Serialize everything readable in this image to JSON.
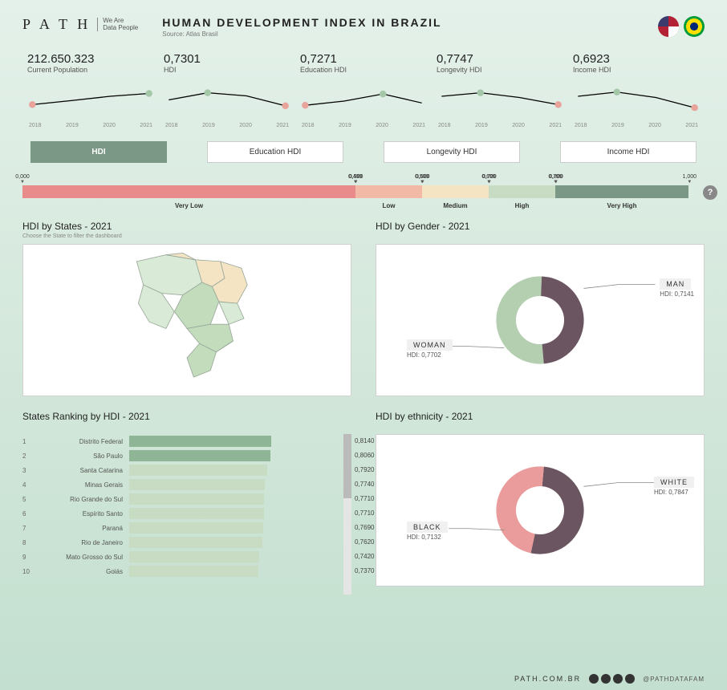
{
  "header": {
    "logo_text": "P A T H",
    "logo_sub1": "We Are",
    "logo_sub2": "Data People",
    "title": "HUMAN DEVELOPMENT INDEX IN BRAZIL",
    "source": "Source: Atlas Brasil"
  },
  "kpis": [
    {
      "value": "212.650.323",
      "label": "Current Population",
      "spark": {
        "years": [
          "2018",
          "2019",
          "2020",
          "2021"
        ],
        "y": [
          0.25,
          0.42,
          0.6,
          0.72
        ],
        "hl_first": true,
        "hl_last": true,
        "first_color": "#e8a39b",
        "last_color": "#a4c7a8",
        "line": "#000"
      }
    },
    {
      "value": "0,7301",
      "label": "HDI",
      "spark": {
        "years": [
          "2018",
          "2019",
          "2020",
          "2021"
        ],
        "y": [
          0.45,
          0.75,
          0.62,
          0.2
        ],
        "hl_first": false,
        "hl_last": true,
        "mid_hl_idx": 1,
        "mid_color": "#a4c7a8",
        "last_color": "#e8a39b",
        "line": "#000"
      }
    },
    {
      "value": "0,7271",
      "label": "Education HDI",
      "spark": {
        "years": [
          "2018",
          "2019",
          "2020",
          "2021"
        ],
        "y": [
          0.22,
          0.4,
          0.7,
          0.32
        ],
        "hl_first": true,
        "hl_last": false,
        "mid_hl_idx": 2,
        "first_color": "#e8a39b",
        "mid_color": "#a4c7a8",
        "line": "#000"
      }
    },
    {
      "value": "0,7747",
      "label": "Longevity HDI",
      "spark": {
        "years": [
          "2018",
          "2019",
          "2020",
          "2021"
        ],
        "y": [
          0.6,
          0.75,
          0.55,
          0.25
        ],
        "hl_first": false,
        "hl_last": true,
        "mid_hl_idx": 1,
        "mid_color": "#a4c7a8",
        "last_color": "#e8a39b",
        "line": "#000"
      }
    },
    {
      "value": "0,6923",
      "label": "Income HDI",
      "spark": {
        "years": [
          "2018",
          "2019",
          "2020",
          "2021"
        ],
        "y": [
          0.6,
          0.78,
          0.55,
          0.12
        ],
        "hl_first": false,
        "hl_last": true,
        "mid_hl_idx": 1,
        "mid_color": "#a4c7a8",
        "last_color": "#e8a39b",
        "line": "#000"
      }
    }
  ],
  "tabs": [
    {
      "label": "HDI",
      "active": true
    },
    {
      "label": "Education HDI",
      "active": false
    },
    {
      "label": "Longevity HDI",
      "active": false
    },
    {
      "label": "Income HDI",
      "active": false
    }
  ],
  "scale": {
    "ticks": [
      {
        "pos": 0.0,
        "label": "0,000"
      },
      {
        "pos": 0.499,
        "label": "0,499"
      },
      {
        "pos": 0.5,
        "label": "0,500"
      },
      {
        "pos": 0.599,
        "label": "0,599"
      },
      {
        "pos": 0.6,
        "label": "0,600"
      },
      {
        "pos": 0.699,
        "label": "0,699"
      },
      {
        "pos": 0.7,
        "label": "0,700"
      },
      {
        "pos": 0.799,
        "label": "0,799"
      },
      {
        "pos": 0.8,
        "label": "0,800"
      },
      {
        "pos": 1.0,
        "label": "1,000"
      }
    ],
    "segments": [
      {
        "width_pct": 50.0,
        "color": "#e98b8b",
        "label": "Very Low"
      },
      {
        "width_pct": 10.0,
        "color": "#f2b9a6",
        "label": "Low"
      },
      {
        "width_pct": 10.0,
        "color": "#f4e4c4",
        "label": "Medium"
      },
      {
        "width_pct": 10.0,
        "color": "#c7dcc2",
        "label": "High"
      },
      {
        "width_pct": 20.0,
        "color": "#7a9885",
        "label": "Very High"
      }
    ],
    "help": "?"
  },
  "map_panel": {
    "title": "HDI by States - 2021",
    "subtitle": "Choose the State to filter the dashboard",
    "colors": {
      "light": "#d9ead7",
      "mid": "#c2dcbc",
      "dark": "#8fb597",
      "tan": "#f4e4c4",
      "stroke": "#9aa89a"
    }
  },
  "gender_panel": {
    "title": "HDI by Gender - 2021",
    "donut": {
      "slices": [
        {
          "label": "WOMAN",
          "hdi": "0,7702",
          "pct": 52,
          "color": "#b4cfb0"
        },
        {
          "label": "MAN",
          "hdi": "0,7141",
          "pct": 48,
          "color": "#6b5560"
        }
      ],
      "inner_ratio": 0.55,
      "bg": "#ffffff"
    }
  },
  "ranking_panel": {
    "title": "States Ranking by HDI - 2021",
    "max": 0.814,
    "bar_color_top": "#8fb597",
    "bar_color_rest": "#c7dcc2",
    "rows": [
      {
        "rank": 1,
        "state": "Distrito Federal",
        "hdi": "0,8140",
        "v": 0.814
      },
      {
        "rank": 2,
        "state": "São Paulo",
        "hdi": "0,8060",
        "v": 0.806
      },
      {
        "rank": 3,
        "state": "Santa Catarina",
        "hdi": "0,7920",
        "v": 0.792
      },
      {
        "rank": 4,
        "state": "Minas Gerais",
        "hdi": "0,7740",
        "v": 0.774
      },
      {
        "rank": 5,
        "state": "Rio Grande do Sul",
        "hdi": "0,7710",
        "v": 0.771
      },
      {
        "rank": 6,
        "state": "Espírito Santo",
        "hdi": "0,7710",
        "v": 0.771
      },
      {
        "rank": 7,
        "state": "Paraná",
        "hdi": "0,7690",
        "v": 0.769
      },
      {
        "rank": 8,
        "state": "Rio de Janeiro",
        "hdi": "0,7620",
        "v": 0.762
      },
      {
        "rank": 9,
        "state": "Mato Grosso do Sul",
        "hdi": "0,7420",
        "v": 0.742
      },
      {
        "rank": 10,
        "state": "Goiás",
        "hdi": "0,7370",
        "v": 0.737
      }
    ]
  },
  "ethnicity_panel": {
    "title": "HDI by ethnicity - 2021",
    "donut": {
      "slices": [
        {
          "label": "WHITE",
          "hdi": "0,7847",
          "pct": 52,
          "color": "#6b5560"
        },
        {
          "label": "BLACK",
          "hdi": "0,7132",
          "pct": 48,
          "color": "#ea9b9b"
        }
      ],
      "inner_ratio": 0.55,
      "bg": "#ffffff"
    }
  },
  "footer": {
    "site": "PATH.COM.BR",
    "handle": "@PATHDATAFAM"
  }
}
